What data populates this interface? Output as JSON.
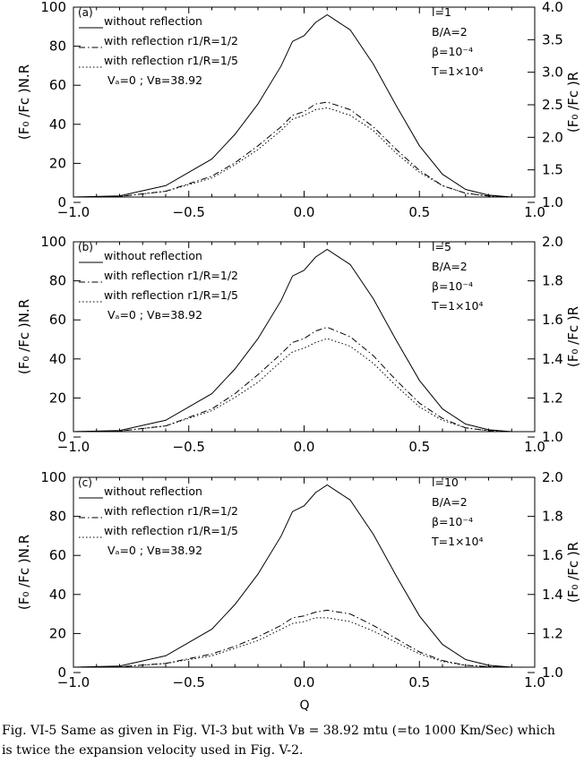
{
  "figure": {
    "shared": {
      "left_ylabel": "(F₀ /Fᴄ )N.R",
      "right_ylabel": "(F₀ /Fᴄ )R",
      "x_ticks": [
        "−1.0",
        "−0.5",
        "0.0",
        "0.5",
        "1.0"
      ],
      "left_ticks": [
        "0",
        "20",
        "40",
        "60",
        "80",
        "100"
      ],
      "xlabel": "Q",
      "legend": [
        "without reflection",
        "with reflection r1/R=1/2",
        "with reflection r1/R=1/5"
      ],
      "velocity_text": "Vₐ=0 ; Vʙ=38.92",
      "ba_text": "B/A=2",
      "beta_text": "β=10⁻⁴",
      "t_text": "T=1×10⁴"
    },
    "colors": {
      "line": "#000000",
      "background": "#ffffff"
    }
  },
  "chart_data": [
    {
      "type": "line",
      "panel_label": "(a)",
      "l_text": "l=1",
      "right_ticks": [
        "1.0",
        "1.5",
        "2.0",
        "2.5",
        "3.0",
        "3.5",
        "4.0"
      ],
      "xlim": [
        -1.0,
        1.0
      ],
      "ylim": [
        0,
        100
      ],
      "right_ylim": [
        1.0,
        4.0
      ],
      "x": [
        -1.0,
        -0.8,
        -0.6,
        -0.4,
        -0.3,
        -0.2,
        -0.1,
        -0.05,
        0.0,
        0.05,
        0.1,
        0.2,
        0.3,
        0.4,
        0.5,
        0.6,
        0.7,
        0.8,
        0.9,
        1.0
      ],
      "series": [
        {
          "name": "without reflection",
          "dash": "solid",
          "values": [
            0,
            0.6,
            6,
            20,
            33,
            49,
            69,
            82,
            85,
            92,
            96,
            88,
            70,
            48,
            27,
            12,
            4,
            1,
            0,
            0
          ]
        },
        {
          "name": "with reflection r1/R=1/2",
          "dash": "dashdot",
          "values": [
            0,
            0.3,
            3,
            11,
            18,
            27,
            37,
            43,
            45,
            49,
            50,
            46,
            37,
            25,
            14,
            6,
            2,
            0.5,
            0,
            0
          ]
        },
        {
          "name": "with reflection r1/R=1/5",
          "dash": "dotted",
          "values": [
            0,
            0.3,
            3,
            10,
            17,
            25,
            35,
            41,
            43,
            46,
            47,
            43,
            35,
            23,
            13,
            6,
            2,
            0.5,
            0,
            0
          ]
        }
      ]
    },
    {
      "type": "line",
      "panel_label": "(b)",
      "l_text": "l=5",
      "right_ticks": [
        "1.0",
        "1.2",
        "1.4",
        "1.6",
        "1.8",
        "2.0"
      ],
      "xlim": [
        -1.0,
        1.0
      ],
      "ylim": [
        0,
        100
      ],
      "right_ylim": [
        1.0,
        2.0
      ],
      "x": [
        -1.0,
        -0.8,
        -0.6,
        -0.4,
        -0.3,
        -0.2,
        -0.1,
        -0.05,
        0.0,
        0.05,
        0.1,
        0.2,
        0.3,
        0.4,
        0.5,
        0.6,
        0.7,
        0.8,
        0.9,
        1.0
      ],
      "series": [
        {
          "name": "without reflection",
          "dash": "solid",
          "values": [
            0,
            0.6,
            6,
            20,
            33,
            49,
            69,
            82,
            85,
            92,
            96,
            88,
            70,
            48,
            27,
            12,
            4,
            1,
            0,
            0
          ]
        },
        {
          "name": "with reflection r1/R=1/2",
          "dash": "dashdot",
          "values": [
            0,
            0.3,
            3,
            12,
            20,
            30,
            41,
            47,
            49,
            53,
            55,
            50,
            40,
            27,
            15,
            7,
            2,
            0.5,
            0,
            0
          ]
        },
        {
          "name": "with reflection r1/R=1/5",
          "dash": "dotted",
          "values": [
            0,
            0.3,
            3,
            11,
            18,
            26,
            37,
            42,
            44,
            47,
            49,
            45,
            36,
            24,
            13,
            6,
            2,
            0.5,
            0,
            0
          ]
        }
      ]
    },
    {
      "type": "line",
      "panel_label": "(c)",
      "l_text": "l=10",
      "right_ticks": [
        "1.0",
        "1.2",
        "1.4",
        "1.6",
        "1.8",
        "2.0"
      ],
      "xlim": [
        -1.0,
        1.0
      ],
      "ylim": [
        0,
        100
      ],
      "right_ylim": [
        1.0,
        2.0
      ],
      "x": [
        -1.0,
        -0.8,
        -0.6,
        -0.4,
        -0.3,
        -0.2,
        -0.1,
        -0.05,
        0.0,
        0.05,
        0.1,
        0.2,
        0.3,
        0.4,
        0.5,
        0.6,
        0.7,
        0.8,
        0.9,
        1.0
      ],
      "series": [
        {
          "name": "without reflection",
          "dash": "solid",
          "values": [
            0,
            0.6,
            6,
            20,
            33,
            49,
            69,
            82,
            85,
            92,
            96,
            88,
            70,
            48,
            27,
            12,
            4,
            1,
            0,
            0
          ]
        },
        {
          "name": "with reflection r1/R=1/2",
          "dash": "dashdot",
          "values": [
            0,
            0.2,
            2,
            7,
            11,
            16,
            22,
            26,
            27,
            29,
            30,
            28,
            22,
            15,
            8,
            3.5,
            1,
            0.3,
            0,
            0
          ]
        },
        {
          "name": "with reflection r1/R=1/5",
          "dash": "dotted",
          "values": [
            0,
            0.2,
            2,
            6,
            10,
            14,
            20,
            23,
            24,
            26,
            26,
            24,
            19,
            13,
            7,
            3,
            1,
            0.3,
            0,
            0
          ]
        }
      ]
    }
  ],
  "caption": {
    "line1": "Fig.  VI-5 Same as given in Fig.  VI-3 but with Vʙ = 38.92 mtu (=to 1000 Km/Sec) which",
    "line2": "is twice the expansion velocity used in Fig.  V-2."
  }
}
